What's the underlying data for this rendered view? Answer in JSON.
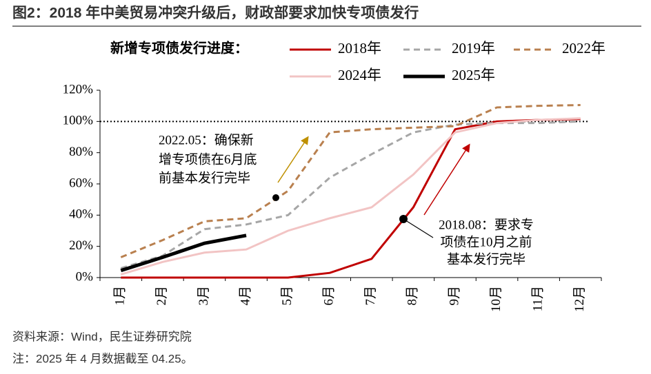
{
  "chart_data": {
    "type": "line",
    "title": "图2：2018 年中美贸易冲突升级后，财政部要求加快专项债发行",
    "legend_title": "新增专项债发行进度：",
    "categories": [
      "1月",
      "2月",
      "3月",
      "4月",
      "5月",
      "6月",
      "7月",
      "8月",
      "9月",
      "10月",
      "11月",
      "12月"
    ],
    "series": [
      {
        "name": "2018年",
        "color": "#c00000",
        "dashed": false,
        "values": [
          0,
          0,
          0,
          0,
          0,
          3,
          12,
          45,
          95,
          100,
          101,
          101.5
        ]
      },
      {
        "name": "2019年",
        "color": "#a6a6a6",
        "dashed": true,
        "values": [
          6,
          14,
          31,
          34,
          40,
          64,
          79,
          93,
          98,
          99,
          99,
          100
        ]
      },
      {
        "name": "2022年",
        "color": "#b9804f",
        "dashed": true,
        "values": [
          13,
          24,
          36,
          38,
          55.5,
          93,
          95,
          96,
          97,
          109,
          110,
          110.5
        ]
      },
      {
        "name": "2024年",
        "color": "#f2c4c4",
        "dashed": false,
        "values": [
          2,
          10,
          16,
          18,
          30,
          38,
          45,
          66,
          93,
          99,
          101,
          102
        ]
      },
      {
        "name": "2025年",
        "color": "#000000",
        "dashed": false,
        "values": [
          4.5,
          13,
          22,
          27,
          null,
          null,
          null,
          null,
          null,
          null,
          null,
          null
        ]
      }
    ],
    "ylim": [
      0,
      120
    ],
    "yticks": [
      {
        "value": 0,
        "label": "0%"
      },
      {
        "value": 20,
        "label": "20%"
      },
      {
        "value": 40,
        "label": "40%"
      },
      {
        "value": 60,
        "label": "60%"
      },
      {
        "value": 80,
        "label": "80%"
      },
      {
        "value": 100,
        "label": "100%"
      },
      {
        "value": 120,
        "label": "120%"
      }
    ],
    "reference_line": 100,
    "annotations": [
      {
        "lines": [
          "2022.05：确保新",
          "增专项债在6月底",
          "前基本发行完毕"
        ]
      },
      {
        "lines": [
          "2018.08：要求专",
          "项债在10月之前",
          "基本发行完毕"
        ]
      }
    ],
    "source": "资料来源：Wind，民生证券研究院",
    "note": "注：2025 年 4 月数据截至 04.25。"
  }
}
